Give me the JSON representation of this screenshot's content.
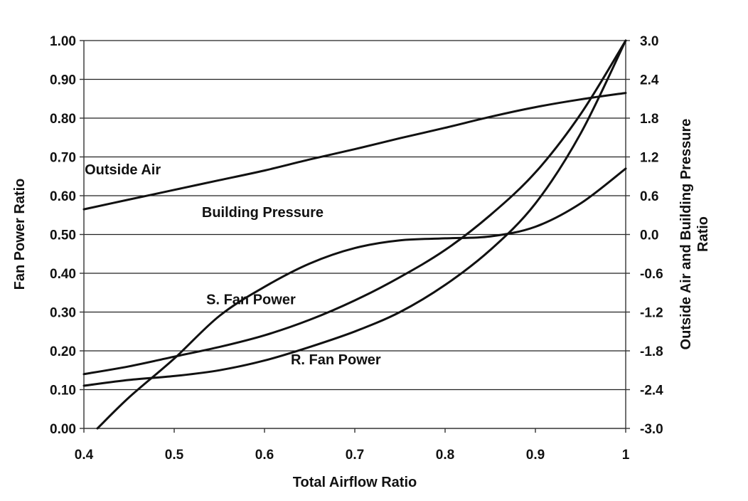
{
  "chart_data": {
    "type": "line",
    "title": "",
    "xlabel": "Total Airflow Ratio",
    "ylabel": "Fan Power Ratio",
    "y2label_lines": [
      "Outside Air and Building Pressure",
      "Ratio"
    ],
    "xlim": [
      0.4,
      1.0
    ],
    "ylim": [
      0.0,
      1.0
    ],
    "y2lim": [
      -3.0,
      3.0
    ],
    "x_ticks": [
      "0.4",
      "0.5",
      "0.6",
      "0.7",
      "0.8",
      "0.9",
      "1"
    ],
    "y_ticks": [
      "0.00",
      "0.10",
      "0.20",
      "0.30",
      "0.40",
      "0.50",
      "0.60",
      "0.70",
      "0.80",
      "0.90",
      "1.00"
    ],
    "y2_ticks": [
      "-3.0",
      "-2.4",
      "-1.8",
      "-1.2",
      "-0.6",
      "0.0",
      "0.6",
      "1.2",
      "1.8",
      "2.4",
      "3.0"
    ],
    "grid": "horizontal",
    "legend": "none",
    "line_color": "#111111",
    "series": [
      {
        "name": "Outside Air",
        "axis": "right",
        "x": [
          0.4,
          0.45,
          0.5,
          0.55,
          0.6,
          0.65,
          0.7,
          0.75,
          0.8,
          0.85,
          0.9,
          0.95,
          1.0
        ],
        "values": [
          0.39,
          0.54,
          0.69,
          0.84,
          0.99,
          1.16,
          1.32,
          1.49,
          1.65,
          1.82,
          1.97,
          2.09,
          2.19
        ]
      },
      {
        "name": "Building Pressure",
        "axis": "right",
        "x": [
          0.415,
          0.45,
          0.5,
          0.55,
          0.6,
          0.65,
          0.7,
          0.75,
          0.8,
          0.85,
          0.9,
          0.95,
          1.0
        ],
        "values": [
          -3.0,
          -2.52,
          -1.92,
          -1.26,
          -0.81,
          -0.45,
          -0.21,
          -0.09,
          -0.06,
          -0.03,
          0.12,
          0.48,
          1.02
        ]
      },
      {
        "name": "S. Fan Power",
        "axis": "left",
        "x": [
          0.4,
          0.45,
          0.5,
          0.55,
          0.6,
          0.65,
          0.7,
          0.75,
          0.8,
          0.85,
          0.9,
          0.95,
          1.0
        ],
        "values": [
          0.14,
          0.16,
          0.185,
          0.21,
          0.24,
          0.28,
          0.33,
          0.39,
          0.46,
          0.55,
          0.66,
          0.81,
          1.0
        ]
      },
      {
        "name": "R. Fan Power",
        "axis": "left",
        "x": [
          0.4,
          0.45,
          0.5,
          0.55,
          0.6,
          0.65,
          0.7,
          0.75,
          0.8,
          0.85,
          0.9,
          0.95,
          1.0
        ],
        "values": [
          0.11,
          0.125,
          0.135,
          0.15,
          0.175,
          0.21,
          0.25,
          0.3,
          0.37,
          0.46,
          0.58,
          0.76,
          1.0
        ]
      }
    ],
    "annotations": [
      {
        "text": "Outside Air",
        "series": "Outside Air",
        "x": 0.443,
        "y": 0.655
      },
      {
        "text": "Building Pressure",
        "series": "Building Pressure",
        "x": 0.598,
        "y": 0.545
      },
      {
        "text": "S. Fan Power",
        "series": "S. Fan Power",
        "x": 0.585,
        "y": 0.32
      },
      {
        "text": "R. Fan Power",
        "series": "R. Fan Power",
        "x": 0.679,
        "y": 0.165
      }
    ]
  }
}
